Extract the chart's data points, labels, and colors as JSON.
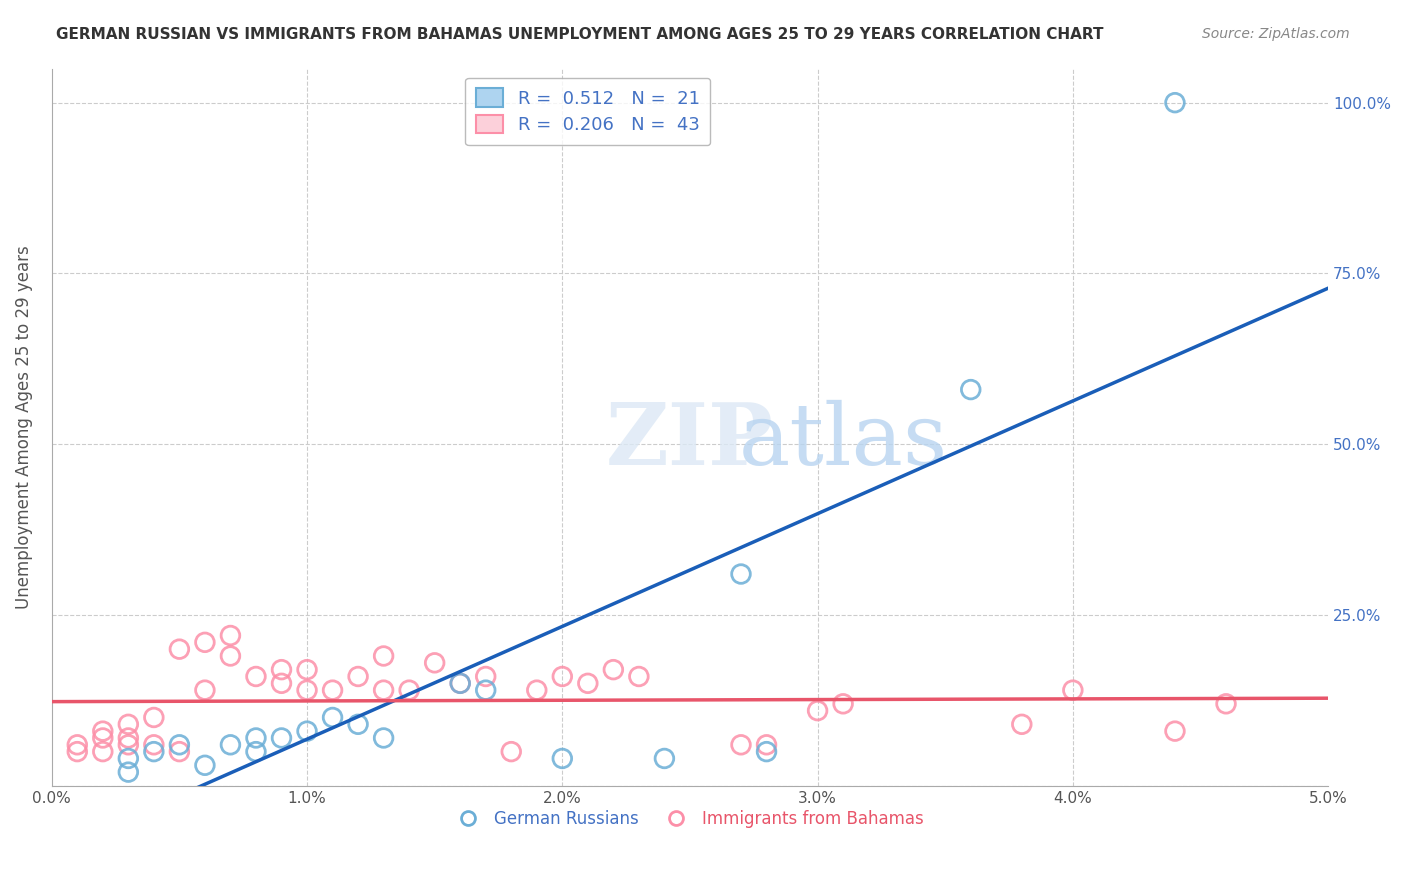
{
  "title": "GERMAN RUSSIAN VS IMMIGRANTS FROM BAHAMAS UNEMPLOYMENT AMONG AGES 25 TO 29 YEARS CORRELATION CHART",
  "source": "Source: ZipAtlas.com",
  "ylabel": "Unemployment Among Ages 25 to 29 years",
  "xmin": 0.0,
  "xmax": 0.05,
  "ymin": 0.0,
  "ymax": 1.05,
  "blue_label": "German Russians",
  "pink_label": "Immigrants from Bahamas",
  "blue_R": "0.512",
  "blue_N": "21",
  "pink_R": "0.206",
  "pink_N": "43",
  "blue_color": "#6baed6",
  "pink_color": "#fc8fa8",
  "blue_line_color": "#1a5eb8",
  "pink_line_color": "#e8556a",
  "blue_text_color": "#4472c4",
  "pink_text_color": "#e8556a",
  "right_axis_color": "#4472c4",
  "blue_scatter_x": [
    0.003,
    0.003,
    0.004,
    0.005,
    0.006,
    0.007,
    0.008,
    0.008,
    0.009,
    0.01,
    0.011,
    0.012,
    0.013,
    0.016,
    0.017,
    0.02,
    0.024,
    0.027,
    0.028,
    0.036,
    0.044
  ],
  "blue_scatter_y": [
    0.04,
    0.02,
    0.05,
    0.06,
    0.03,
    0.06,
    0.05,
    0.07,
    0.07,
    0.08,
    0.1,
    0.09,
    0.07,
    0.15,
    0.14,
    0.04,
    0.04,
    0.31,
    0.05,
    0.58,
    1.0
  ],
  "pink_scatter_x": [
    0.001,
    0.001,
    0.002,
    0.002,
    0.002,
    0.003,
    0.003,
    0.003,
    0.004,
    0.004,
    0.005,
    0.005,
    0.006,
    0.006,
    0.007,
    0.007,
    0.008,
    0.009,
    0.009,
    0.01,
    0.01,
    0.011,
    0.012,
    0.013,
    0.013,
    0.014,
    0.015,
    0.016,
    0.017,
    0.018,
    0.019,
    0.02,
    0.021,
    0.022,
    0.023,
    0.027,
    0.028,
    0.03,
    0.031,
    0.038,
    0.04,
    0.044,
    0.046
  ],
  "pink_scatter_y": [
    0.05,
    0.06,
    0.05,
    0.07,
    0.08,
    0.06,
    0.07,
    0.09,
    0.1,
    0.06,
    0.05,
    0.2,
    0.21,
    0.14,
    0.19,
    0.22,
    0.16,
    0.15,
    0.17,
    0.14,
    0.17,
    0.14,
    0.16,
    0.14,
    0.19,
    0.14,
    0.18,
    0.15,
    0.16,
    0.05,
    0.14,
    0.16,
    0.15,
    0.17,
    0.16,
    0.06,
    0.06,
    0.11,
    0.12,
    0.09,
    0.14,
    0.08,
    0.12
  ],
  "grid_color": "#cccccc",
  "background_color": "#ffffff"
}
